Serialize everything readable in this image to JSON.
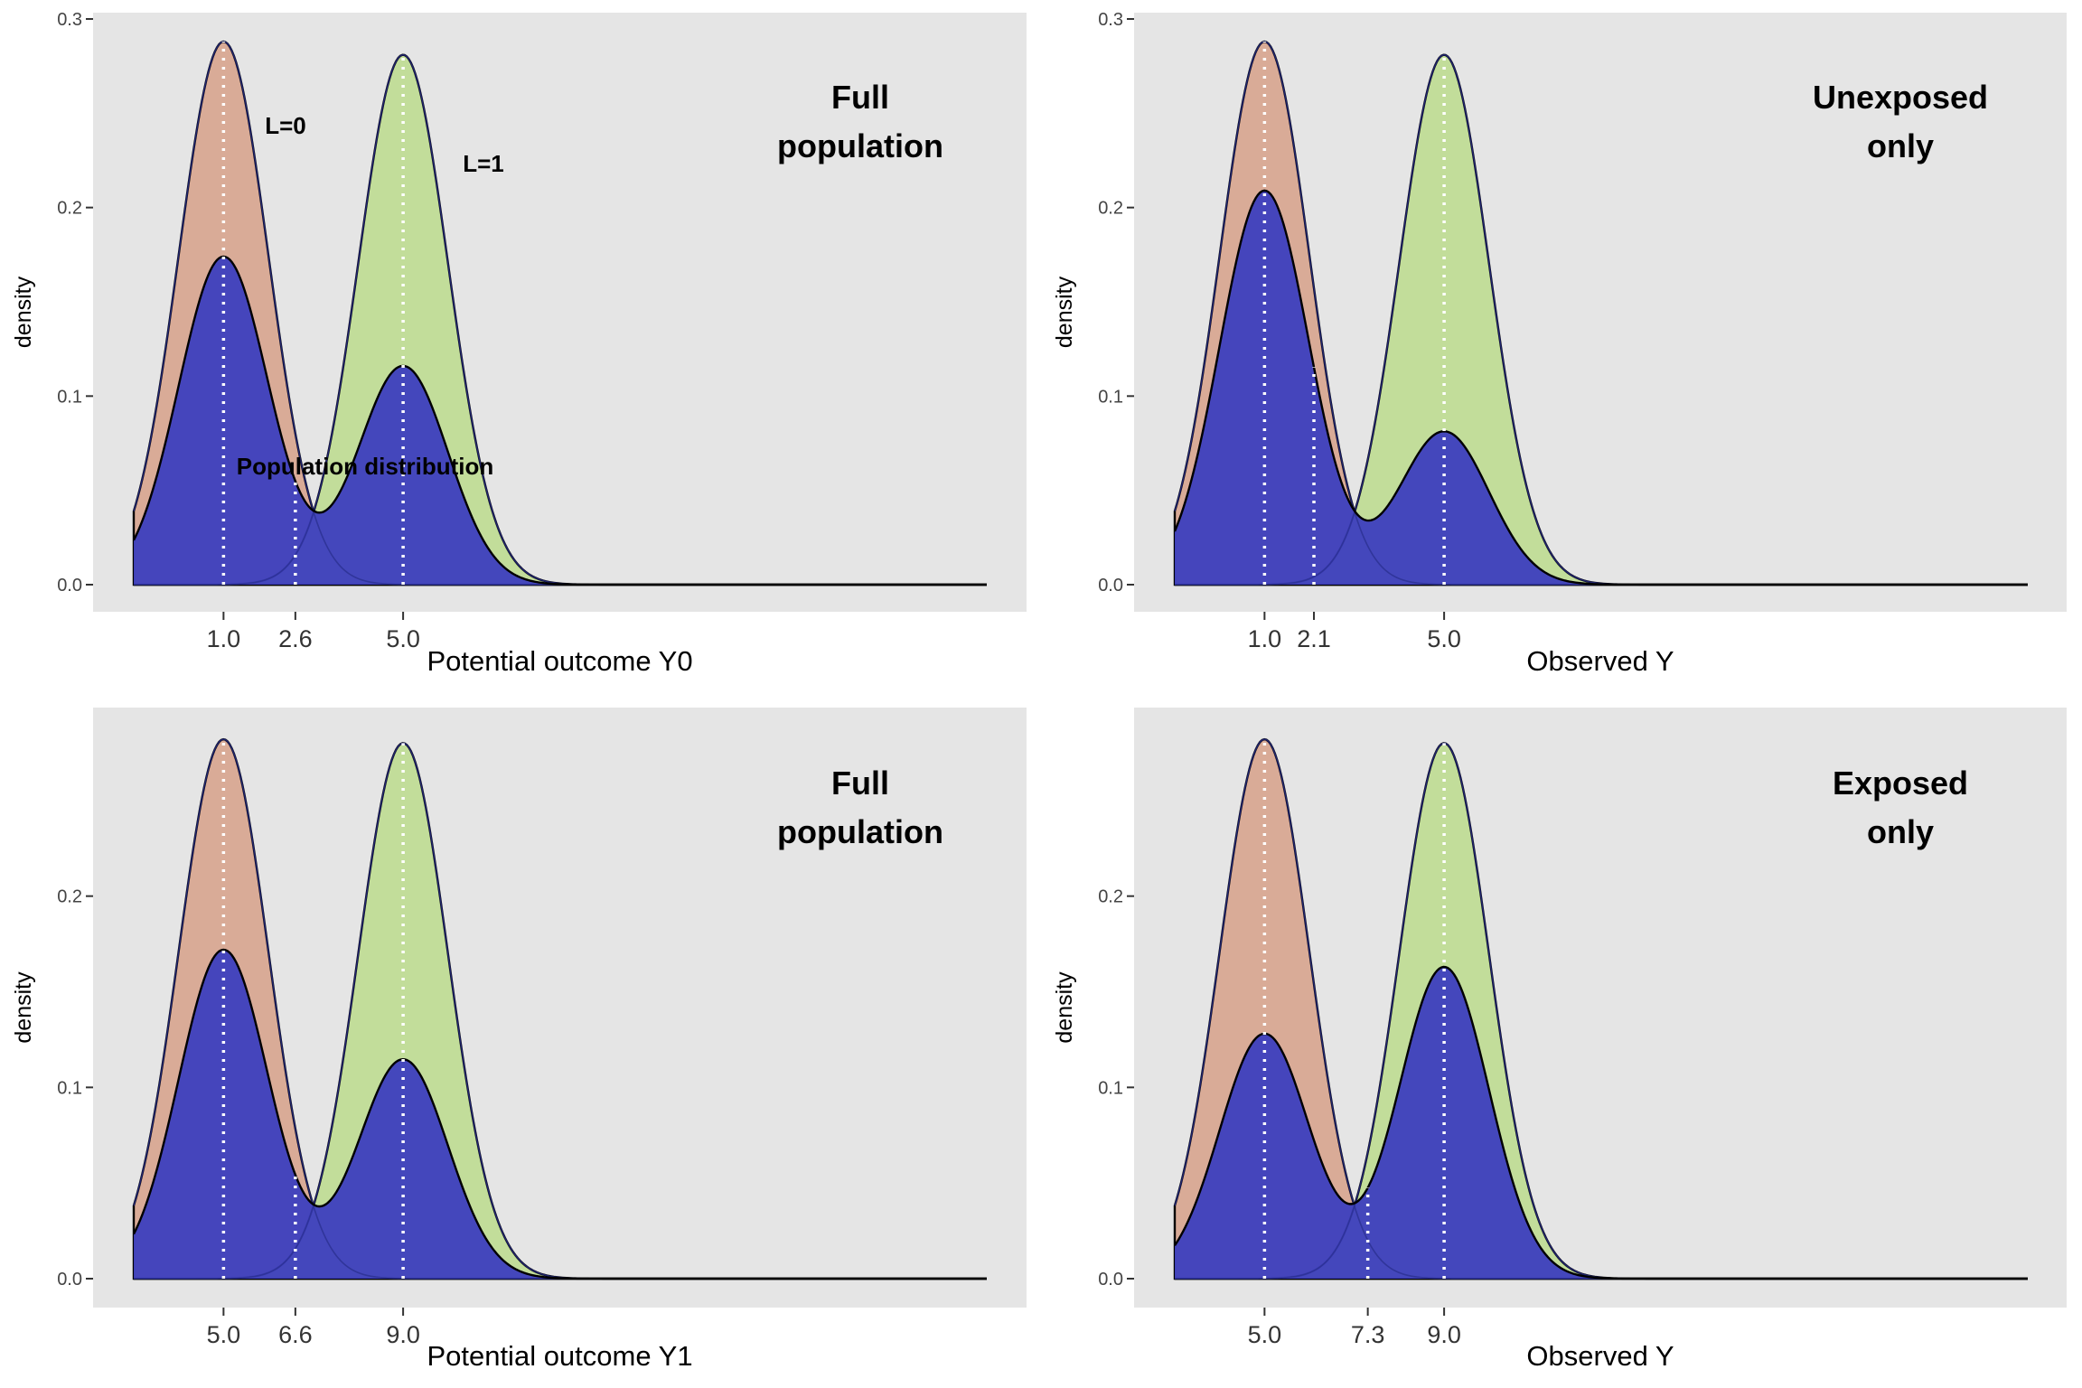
{
  "chart_data": [
    {
      "type": "area",
      "title": "Full population",
      "xlabel": "Potential outcome Y0",
      "ylabel": "density",
      "xlim": [
        -1.0,
        18.0
      ],
      "ylim": [
        0,
        0.3
      ],
      "y_ticks": [
        0.0,
        0.1,
        0.2,
        0.3
      ],
      "x_ticks": [
        1.0,
        2.6,
        5.0
      ],
      "x_tick_labels": [
        "1.0",
        "2.6",
        "5.0"
      ],
      "grid": false,
      "group_means": [
        1.0,
        5.0
      ],
      "group_weights": [
        0.6,
        0.4
      ],
      "group_labels": [
        "L=0",
        "L=1"
      ],
      "mixture_label": "Population distribution",
      "overall_mean": 2.6,
      "series": [
        {
          "name": "L=0",
          "color": "#d9ab97",
          "peak": 0.288
        },
        {
          "name": "L=1",
          "color": "#c2dd9a",
          "peak": 0.281
        },
        {
          "name": "Population distribution",
          "color": "#3e41bd",
          "peak": 0.174
        }
      ]
    },
    {
      "type": "area",
      "title": "Unexposed only",
      "xlabel": "Observed Y",
      "ylabel": "density",
      "xlim": [
        -1.0,
        18.0
      ],
      "ylim": [
        0,
        0.3
      ],
      "y_ticks": [
        0.0,
        0.1,
        0.2,
        0.3
      ],
      "x_ticks": [
        1.0,
        2.1,
        5.0
      ],
      "x_tick_labels": [
        "1.0",
        "2.1",
        "5.0"
      ],
      "grid": false,
      "group_means": [
        1.0,
        5.0
      ],
      "group_weights": [
        0.72,
        0.28
      ],
      "group_labels": [],
      "mixture_label": "",
      "overall_mean": 2.1,
      "series": [
        {
          "name": "L=0",
          "color": "#d9ab97",
          "peak": 0.288
        },
        {
          "name": "L=1",
          "color": "#c2dd9a",
          "peak": 0.281
        },
        {
          "name": "Population distribution",
          "color": "#3e41bd",
          "peak": 0.209
        }
      ]
    },
    {
      "type": "area",
      "title": "Full population",
      "xlabel": "Potential outcome Y1",
      "ylabel": "density",
      "xlim": [
        3.0,
        22.0
      ],
      "ylim": [
        0,
        0.3
      ],
      "y_ticks": [
        0.0,
        0.1,
        0.2
      ],
      "x_ticks": [
        5.0,
        6.6,
        9.0
      ],
      "x_tick_labels": [
        "5.0",
        "6.6",
        "9.0"
      ],
      "grid": false,
      "group_means": [
        5.0,
        9.0
      ],
      "group_weights": [
        0.6,
        0.4
      ],
      "group_labels": [],
      "mixture_label": "",
      "overall_mean": 6.6,
      "series": [
        {
          "name": "L=0",
          "color": "#d9ab97",
          "peak": 0.282
        },
        {
          "name": "L=1",
          "color": "#c2dd9a",
          "peak": 0.28
        },
        {
          "name": "Population distribution",
          "color": "#3e41bd",
          "peak": 0.172
        }
      ]
    },
    {
      "type": "area",
      "title": "Exposed only",
      "xlabel": "Observed Y",
      "ylabel": "density",
      "xlim": [
        3.0,
        22.0
      ],
      "ylim": [
        0,
        0.3
      ],
      "y_ticks": [
        0.0,
        0.1,
        0.2
      ],
      "x_ticks": [
        5.0,
        7.3,
        9.0
      ],
      "x_tick_labels": [
        "5.0",
        "7.3",
        "9.0"
      ],
      "grid": false,
      "group_means": [
        5.0,
        9.0
      ],
      "group_weights": [
        0.44,
        0.56
      ],
      "group_labels": [],
      "mixture_label": "",
      "overall_mean": 7.3,
      "series": [
        {
          "name": "L=0",
          "color": "#d9ab97",
          "peak": 0.282
        },
        {
          "name": "L=1",
          "color": "#c2dd9a",
          "peak": 0.28
        },
        {
          "name": "Population distribution",
          "color": "#3e41bd",
          "peak": 0.163
        }
      ]
    }
  ],
  "colors": {
    "panel_background": "#e5e5e5",
    "group0_fill": "#d9ab97",
    "group1_fill": "#c2dd9a",
    "mixture_fill": "#3e41bd",
    "mean_line": "#ffffff"
  }
}
